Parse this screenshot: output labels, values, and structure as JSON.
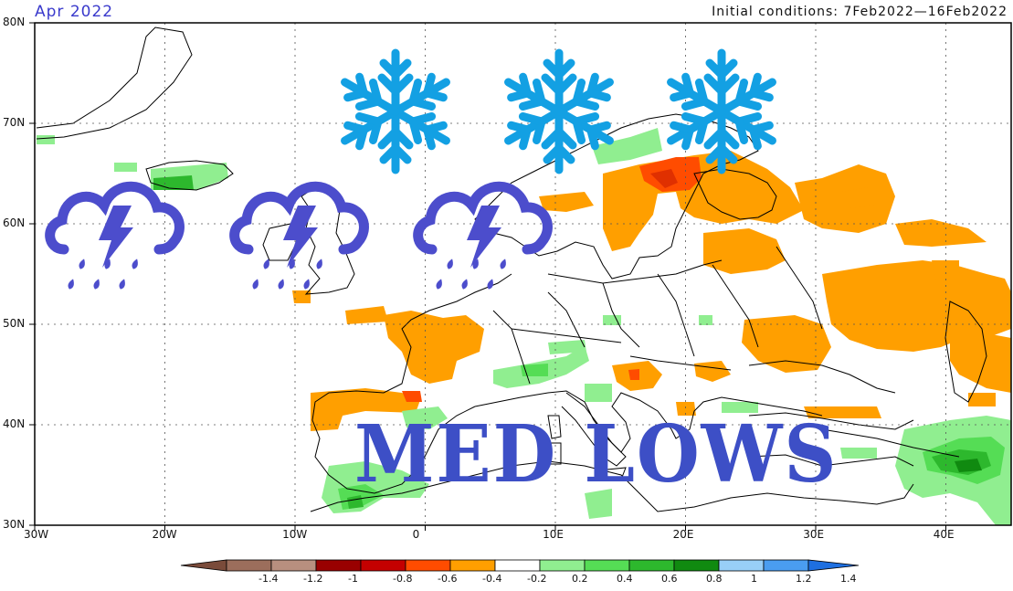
{
  "header": {
    "title_left": "Apr  2022",
    "title_right": "Initial conditions: 7Feb2022—16Feb2022"
  },
  "banner": {
    "text": "MED LOWS"
  },
  "map": {
    "projection": "lat-lon",
    "lon_range": [
      -30,
      45
    ],
    "lat_range": [
      30,
      80
    ],
    "grid": true,
    "lat_labels": [
      "80N",
      "70N",
      "60N",
      "50N",
      "40N",
      "30N"
    ],
    "lon_labels": [
      "30W",
      "20W",
      "10W",
      "0",
      "10E",
      "20E",
      "30E",
      "40E"
    ],
    "lat_values": [
      80,
      70,
      60,
      50,
      40,
      30
    ],
    "lon_values": [
      -30,
      -20,
      -10,
      0,
      10,
      20,
      30,
      40
    ]
  },
  "colorbar": {
    "labels": [
      "-1.4",
      "-1.2",
      "-1",
      "-0.8",
      "-0.6",
      "-0.4",
      "-0.2",
      "0.2",
      "0.4",
      "0.6",
      "0.8",
      "1",
      "1.2",
      "1.4"
    ],
    "colors": [
      "#7a4b3a",
      "#9c6e5c",
      "#b88f7f",
      "#990000",
      "#c40000",
      "#ff4c00",
      "#ff9f00",
      "#ffffff",
      "#90ee90",
      "#55dd55",
      "#2db82d",
      "#108a10",
      "#98cff7",
      "#4a9df0",
      "#1e6fe0"
    ]
  },
  "icons": {
    "snowflake": {
      "name": "snowflake-icon",
      "color": "#13a0e3",
      "count": 3
    },
    "storm": {
      "name": "thunderstorm-icon",
      "color": "#4c4dcc",
      "count": 3
    }
  },
  "anomaly_colors": {
    "orange": "#ff9f00",
    "red": "#ff4c00",
    "dark_red": "#e03000",
    "green_light": "#90ee90",
    "green_mid": "#55dd55",
    "green_dark": "#2db82d"
  }
}
